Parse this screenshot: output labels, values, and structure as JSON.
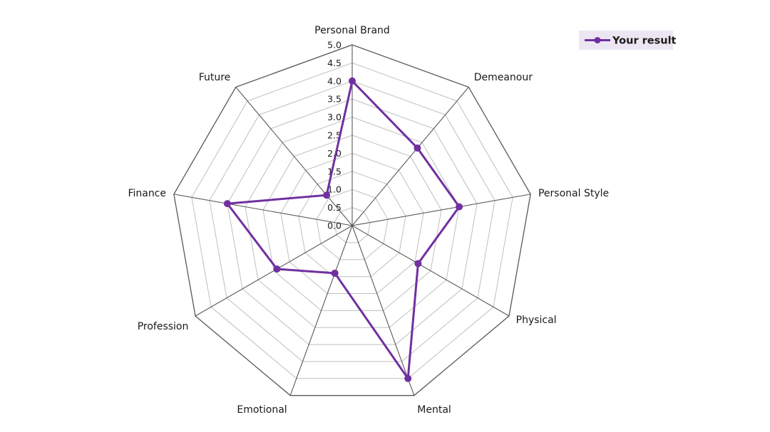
{
  "chart_data": {
    "type": "radar",
    "categories": [
      "Personal Brand",
      "Demeanour",
      "Personal Style",
      "Physical",
      "Mental",
      "Emotional",
      "Profession",
      "Finance",
      "Future"
    ],
    "series": [
      {
        "name": "Your result",
        "values": [
          4.0,
          2.8,
          3.0,
          2.1,
          4.5,
          1.4,
          2.4,
          3.5,
          1.1
        ]
      }
    ],
    "rlim": [
      0,
      5.0
    ],
    "ticks": [
      "0.0",
      "0.5",
      "1.0",
      "1.5",
      "2.0",
      "2.5",
      "3.0",
      "3.5",
      "4.0",
      "4.5",
      "5.0"
    ],
    "legend_position": "top-right",
    "grid": true,
    "colors": {
      "series": "#7030a0",
      "grid_inner": "#bfbfbf",
      "grid_outer": "#595959",
      "legend_bg": "#ece6f2"
    }
  }
}
